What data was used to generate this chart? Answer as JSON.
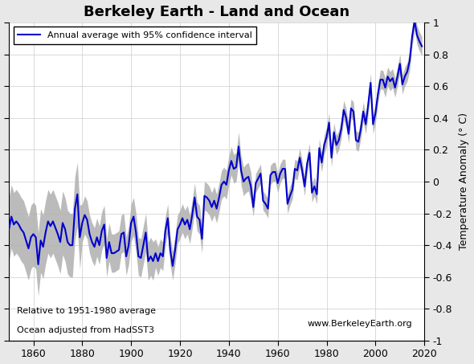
{
  "title": "Berkeley Earth - Land and Ocean",
  "ylabel": "Temperature Anomaly (° C)",
  "xlim": [
    1850,
    2020
  ],
  "ylim": [
    -1,
    1
  ],
  "yticks": [
    -1,
    -0.8,
    -0.6,
    -0.4,
    -0.2,
    0,
    0.2,
    0.4,
    0.6,
    0.8,
    1
  ],
  "xticks": [
    1860,
    1880,
    1900,
    1920,
    1940,
    1960,
    1980,
    2000,
    2020
  ],
  "line_color": "#0000cc",
  "ci_color": "#b0b0b0",
  "background_color": "#e8e8e8",
  "plot_bg_color": "#ffffff",
  "legend_label": "Annual average with 95% confidence interval",
  "annotation1": "Relative to 1951-1980 average",
  "annotation2": "Ocean adjusted from HadSST3",
  "annotation3": "www.BerkeleyEarth.org",
  "years": [
    1850,
    1851,
    1852,
    1853,
    1854,
    1855,
    1856,
    1857,
    1858,
    1859,
    1860,
    1861,
    1862,
    1863,
    1864,
    1865,
    1866,
    1867,
    1868,
    1869,
    1870,
    1871,
    1872,
    1873,
    1874,
    1875,
    1876,
    1877,
    1878,
    1879,
    1880,
    1881,
    1882,
    1883,
    1884,
    1885,
    1886,
    1887,
    1888,
    1889,
    1890,
    1891,
    1892,
    1893,
    1894,
    1895,
    1896,
    1897,
    1898,
    1899,
    1900,
    1901,
    1902,
    1903,
    1904,
    1905,
    1906,
    1907,
    1908,
    1909,
    1910,
    1911,
    1912,
    1913,
    1914,
    1915,
    1916,
    1917,
    1918,
    1919,
    1920,
    1921,
    1922,
    1923,
    1924,
    1925,
    1926,
    1927,
    1928,
    1929,
    1930,
    1931,
    1932,
    1933,
    1934,
    1935,
    1936,
    1937,
    1938,
    1939,
    1940,
    1941,
    1942,
    1943,
    1944,
    1945,
    1946,
    1947,
    1948,
    1949,
    1950,
    1951,
    1952,
    1953,
    1954,
    1955,
    1956,
    1957,
    1958,
    1959,
    1960,
    1961,
    1962,
    1963,
    1964,
    1965,
    1966,
    1967,
    1968,
    1969,
    1970,
    1971,
    1972,
    1973,
    1974,
    1975,
    1976,
    1977,
    1978,
    1979,
    1980,
    1981,
    1982,
    1983,
    1984,
    1985,
    1986,
    1987,
    1988,
    1989,
    1990,
    1991,
    1992,
    1993,
    1994,
    1995,
    1996,
    1997,
    1998,
    1999,
    2000,
    2001,
    2002,
    2003,
    2004,
    2005,
    2006,
    2007,
    2008,
    2009,
    2010,
    2011,
    2012,
    2013,
    2014,
    2015,
    2016,
    2017,
    2018,
    2019
  ],
  "temp": [
    -0.3,
    -0.22,
    -0.27,
    -0.25,
    -0.27,
    -0.3,
    -0.32,
    -0.37,
    -0.42,
    -0.35,
    -0.33,
    -0.35,
    -0.52,
    -0.37,
    -0.41,
    -0.32,
    -0.25,
    -0.28,
    -0.25,
    -0.29,
    -0.33,
    -0.38,
    -0.26,
    -0.3,
    -0.38,
    -0.4,
    -0.4,
    -0.17,
    -0.08,
    -0.35,
    -0.26,
    -0.21,
    -0.24,
    -0.33,
    -0.38,
    -0.41,
    -0.35,
    -0.4,
    -0.31,
    -0.27,
    -0.48,
    -0.38,
    -0.45,
    -0.45,
    -0.44,
    -0.43,
    -0.33,
    -0.32,
    -0.47,
    -0.4,
    -0.26,
    -0.22,
    -0.32,
    -0.47,
    -0.48,
    -0.4,
    -0.32,
    -0.5,
    -0.47,
    -0.5,
    -0.45,
    -0.5,
    -0.45,
    -0.47,
    -0.31,
    -0.23,
    -0.43,
    -0.53,
    -0.43,
    -0.3,
    -0.27,
    -0.23,
    -0.27,
    -0.24,
    -0.3,
    -0.21,
    -0.1,
    -0.22,
    -0.24,
    -0.36,
    -0.09,
    -0.1,
    -0.12,
    -0.16,
    -0.12,
    -0.17,
    -0.1,
    -0.02,
    -0.0,
    -0.02,
    0.07,
    0.13,
    0.08,
    0.09,
    0.22,
    0.07,
    0.0,
    0.02,
    0.03,
    -0.03,
    -0.16,
    -0.01,
    0.02,
    0.05,
    -0.12,
    -0.14,
    -0.17,
    0.04,
    0.06,
    0.06,
    -0.01,
    0.05,
    0.08,
    0.08,
    -0.14,
    -0.09,
    -0.05,
    0.08,
    0.07,
    0.15,
    0.07,
    -0.03,
    0.11,
    0.18,
    -0.07,
    -0.03,
    -0.08,
    0.21,
    0.12,
    0.23,
    0.28,
    0.37,
    0.15,
    0.31,
    0.23,
    0.26,
    0.33,
    0.45,
    0.4,
    0.3,
    0.46,
    0.44,
    0.26,
    0.25,
    0.33,
    0.44,
    0.36,
    0.48,
    0.62,
    0.36,
    0.43,
    0.55,
    0.64,
    0.64,
    0.59,
    0.66,
    0.63,
    0.65,
    0.59,
    0.66,
    0.74,
    0.61,
    0.66,
    0.69,
    0.76,
    0.91,
    1.01,
    0.92,
    0.88,
    0.85
  ],
  "ci_half": 0.09
}
